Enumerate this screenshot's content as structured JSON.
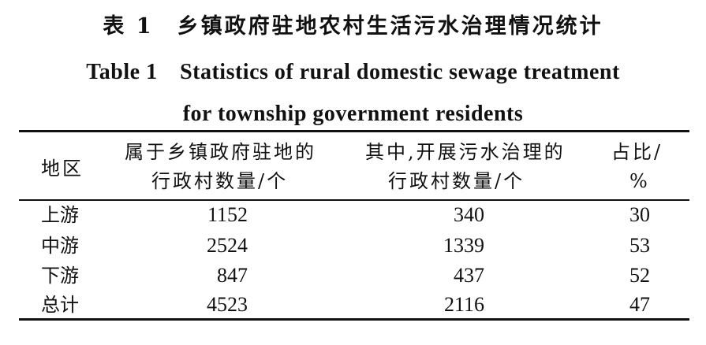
{
  "caption": {
    "cn": "表 1　乡镇政府驻地农村生活污水治理情况统计",
    "en_line1": "Table 1　Statistics of rural domestic sewage treatment",
    "en_line2": "for township government residents"
  },
  "table": {
    "headers": {
      "region": "地区",
      "villages_l1": "属于乡镇政府驻地的",
      "villages_l2": "行政村数量/个",
      "treated_l1": "其中,开展污水治理的",
      "treated_l2": "行政村数量/个",
      "ratio_l1": "占比/",
      "ratio_l2": "%"
    },
    "rows": [
      {
        "region": "上游",
        "villages": "1152",
        "treated": "340",
        "ratio": "30"
      },
      {
        "region": "中游",
        "villages": "2524",
        "treated": "1339",
        "ratio": "53"
      },
      {
        "region": "下游",
        "villages": "847",
        "treated": "437",
        "ratio": "52"
      },
      {
        "region": "总计",
        "villages": "4523",
        "treated": "2116",
        "ratio": "47"
      }
    ]
  }
}
